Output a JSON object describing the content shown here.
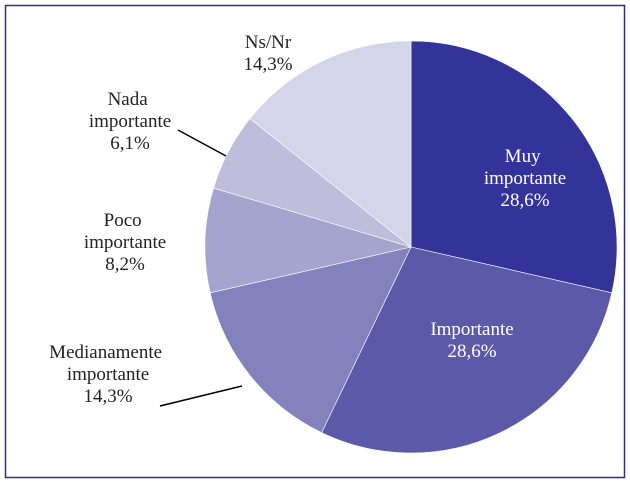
{
  "chart_data": {
    "type": "pie",
    "categories": [
      "Muy importante",
      "Importante",
      "Medianamente importante",
      "Poco importante",
      "Nada importante",
      "Ns/Nr"
    ],
    "values": [
      28.6,
      28.6,
      14.3,
      8.2,
      6.1,
      14.3
    ],
    "value_labels": [
      "28,6%",
      "28,6%",
      "14,3%",
      "8,2%",
      "6,1%",
      "14,3%"
    ],
    "colors": [
      "#33339a",
      "#5b5aa9",
      "#8382bc",
      "#a5a4cf",
      "#bebddc",
      "#d5d5e9"
    ]
  }
}
